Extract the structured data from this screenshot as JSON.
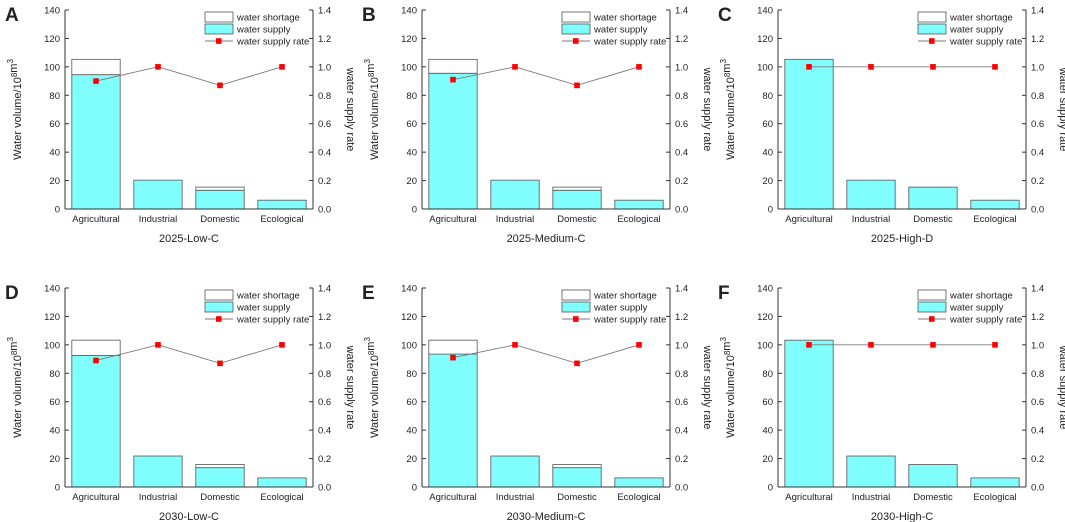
{
  "figure_title": "",
  "legend": {
    "shortage": "water shortage",
    "supply": "water supply",
    "rate": "water supply rate"
  },
  "colors": {
    "supply_fill": "#80fefe",
    "shortage_fill": "#ffffff",
    "bar_stroke": "#555555",
    "rate_marker": "#ff0000",
    "rate_line": "#7a7a7a"
  },
  "chart_data": [
    {
      "type": "bar",
      "panel_label": "A",
      "title": "2025-Low-C",
      "categories": [
        "Agricultural",
        "Industrial",
        "Domestic",
        "Ecological"
      ],
      "series": [
        {
          "name": "water supply",
          "values": [
            94.5,
            20.3,
            13.2,
            6.2
          ]
        },
        {
          "name": "water shortage",
          "values": [
            10.8,
            0,
            2.2,
            0
          ]
        },
        {
          "name": "water supply rate",
          "axis": "right",
          "values": [
            0.9,
            1.0,
            0.87,
            1.0
          ]
        }
      ],
      "ylabel": "Water volume/10^8m^3",
      "y2label": "water supply rate",
      "ylim": [
        0,
        140
      ],
      "y2lim": [
        0,
        1.4
      ],
      "yticks": [
        "0",
        "20",
        "40",
        "60",
        "80",
        "100",
        "120",
        "140"
      ],
      "y2ticks": [
        "0.0",
        "0.2",
        "0.4",
        "0.6",
        "0.8",
        "1.0",
        "1.2",
        "1.4"
      ]
    },
    {
      "type": "bar",
      "panel_label": "B",
      "title": "2025-Medium-C",
      "categories": [
        "Agricultural",
        "Industrial",
        "Domestic",
        "Ecological"
      ],
      "series": [
        {
          "name": "water supply",
          "values": [
            95.5,
            20.3,
            13.2,
            6.2
          ]
        },
        {
          "name": "water shortage",
          "values": [
            9.8,
            0,
            2.2,
            0
          ]
        },
        {
          "name": "water supply rate",
          "axis": "right",
          "values": [
            0.91,
            1.0,
            0.87,
            1.0
          ]
        }
      ],
      "ylabel": "Water volume/10^8m^3",
      "y2label": "water supply rate",
      "ylim": [
        0,
        140
      ],
      "y2lim": [
        0,
        1.4
      ],
      "yticks": [
        "0",
        "20",
        "40",
        "60",
        "80",
        "100",
        "120",
        "140"
      ],
      "y2ticks": [
        "0.0",
        "0.2",
        "0.4",
        "0.6",
        "0.8",
        "1.0",
        "1.2",
        "1.4"
      ]
    },
    {
      "type": "bar",
      "panel_label": "C",
      "title": "2025-High-D",
      "categories": [
        "Agricultural",
        "Industrial",
        "Domestic",
        "Ecological"
      ],
      "series": [
        {
          "name": "water supply",
          "values": [
            105.3,
            20.3,
            15.4,
            6.2
          ]
        },
        {
          "name": "water shortage",
          "values": [
            0,
            0,
            0,
            0
          ]
        },
        {
          "name": "water supply rate",
          "axis": "right",
          "values": [
            1.0,
            1.0,
            1.0,
            1.0
          ]
        }
      ],
      "ylabel": "Water volume/10^8m^3",
      "y2label": "water supply rate",
      "ylim": [
        0,
        140
      ],
      "y2lim": [
        0,
        1.4
      ],
      "yticks": [
        "0",
        "20",
        "40",
        "60",
        "80",
        "100",
        "120",
        "140"
      ],
      "y2ticks": [
        "0.0",
        "0.2",
        "0.4",
        "0.6",
        "0.8",
        "1.0",
        "1.2",
        "1.4"
      ]
    },
    {
      "type": "bar",
      "panel_label": "D",
      "title": "2030-Low-C",
      "categories": [
        "Agricultural",
        "Industrial",
        "Domestic",
        "Ecological"
      ],
      "series": [
        {
          "name": "water supply",
          "values": [
            92.5,
            21.8,
            13.6,
            6.4
          ]
        },
        {
          "name": "water shortage",
          "values": [
            10.8,
            0,
            2.2,
            0
          ]
        },
        {
          "name": "water supply rate",
          "axis": "right",
          "values": [
            0.89,
            1.0,
            0.87,
            1.0
          ]
        }
      ],
      "ylabel": "Water volume/10^8m^3",
      "y2label": "water supply rate",
      "ylim": [
        0,
        140
      ],
      "y2lim": [
        0,
        1.4
      ],
      "yticks": [
        "0",
        "20",
        "40",
        "60",
        "80",
        "100",
        "120",
        "140"
      ],
      "y2ticks": [
        "0.0",
        "0.2",
        "0.4",
        "0.6",
        "0.8",
        "1.0",
        "1.2",
        "1.4"
      ]
    },
    {
      "type": "bar",
      "panel_label": "E",
      "title": "2030-Medium-C",
      "categories": [
        "Agricultural",
        "Industrial",
        "Domestic",
        "Ecological"
      ],
      "series": [
        {
          "name": "water supply",
          "values": [
            93.5,
            21.8,
            13.6,
            6.4
          ]
        },
        {
          "name": "water shortage",
          "values": [
            9.8,
            0,
            2.2,
            0
          ]
        },
        {
          "name": "water supply rate",
          "axis": "right",
          "values": [
            0.91,
            1.0,
            0.87,
            1.0
          ]
        }
      ],
      "ylabel": "Water volume/10^8m^3",
      "y2label": "water supply rate",
      "ylim": [
        0,
        140
      ],
      "y2lim": [
        0,
        1.4
      ],
      "yticks": [
        "0",
        "20",
        "40",
        "60",
        "80",
        "100",
        "120",
        "140"
      ],
      "y2ticks": [
        "0.0",
        "0.2",
        "0.4",
        "0.6",
        "0.8",
        "1.0",
        "1.2",
        "1.4"
      ]
    },
    {
      "type": "bar",
      "panel_label": "F",
      "title": "2030-High-C",
      "categories": [
        "Agricultural",
        "Industrial",
        "Domestic",
        "Ecological"
      ],
      "series": [
        {
          "name": "water supply",
          "values": [
            103.3,
            21.8,
            15.8,
            6.4
          ]
        },
        {
          "name": "water shortage",
          "values": [
            0,
            0,
            0,
            0
          ]
        },
        {
          "name": "water supply rate",
          "axis": "right",
          "values": [
            1.0,
            1.0,
            1.0,
            1.0
          ]
        }
      ],
      "ylabel": "Water volume/10^8m^3",
      "y2label": "water supply rate",
      "ylim": [
        0,
        140
      ],
      "y2lim": [
        0,
        1.4
      ],
      "yticks": [
        "0",
        "20",
        "40",
        "60",
        "80",
        "100",
        "120",
        "140"
      ],
      "y2ticks": [
        "0.0",
        "0.2",
        "0.4",
        "0.6",
        "0.8",
        "1.0",
        "1.2",
        "1.4"
      ]
    }
  ]
}
